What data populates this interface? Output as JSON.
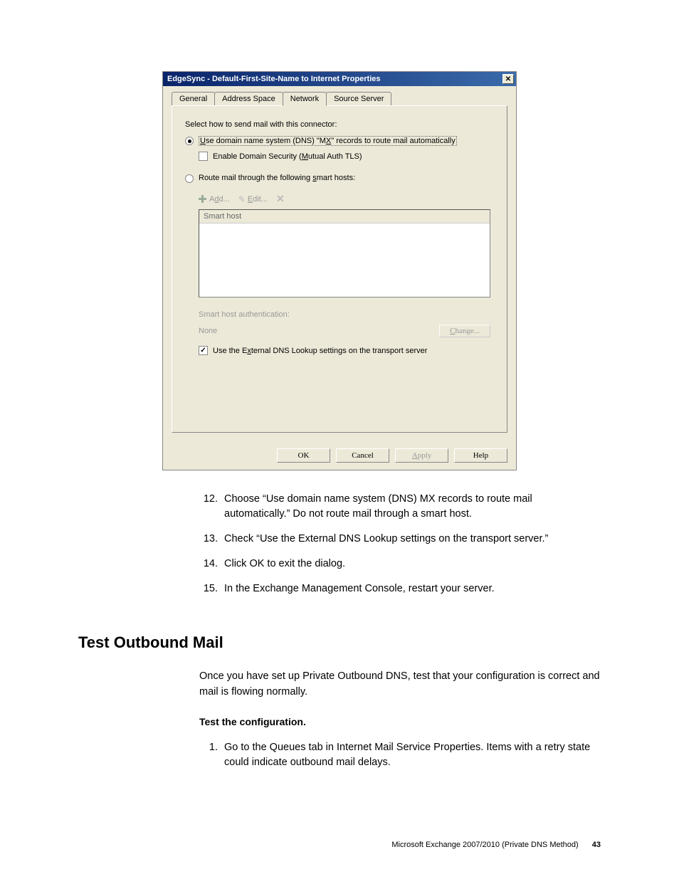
{
  "dialog": {
    "title": "EdgeSync - Default-First-Site-Name to Internet Properties",
    "tabs": {
      "general": "General",
      "address_space": "Address Space",
      "network": "Network",
      "source_server": "Source Server"
    },
    "instruction": "Select how to send mail with this connector:",
    "radio_dns": "Use domain name system (DNS) \"MX\" records to route mail automatically",
    "checkbox_tls": "Enable Domain Security (Mutual Auth TLS)",
    "radio_smart": "Route mail through the following smart hosts:",
    "toolbar": {
      "add": "Add...",
      "edit": "Edit...",
      "delete": "✕"
    },
    "listbox_header": "Smart host",
    "auth_label": "Smart host authentication:",
    "auth_value": "None",
    "change_btn": "Change...",
    "ext_dns": "Use the External DNS Lookup settings on the transport server",
    "buttons": {
      "ok": "OK",
      "cancel": "Cancel",
      "apply": "Apply",
      "help": "Help"
    }
  },
  "steps": {
    "s12": "Choose “Use domain name system (DNS) MX records to route mail automatically.” Do not route mail through a smart host.",
    "s13": "Check “Use the External DNS Lookup settings on the transport server.”",
    "s14": "Click OK to exit the dialog.",
    "s15": "In the Exchange Management Console, restart your server."
  },
  "heading": "Test Outbound Mail",
  "para1": "Once you have set up Private Outbound DNS, test that your configuration is correct and mail is flowing normally.",
  "bold1": "Test the configuration.",
  "step_test1": "Go to the Queues tab in Internet Mail Service Properties. Items with a retry state could indicate outbound mail delays.",
  "footer": {
    "text": "Microsoft Exchange 2007/2010 (Private DNS Method)",
    "page": "43"
  }
}
